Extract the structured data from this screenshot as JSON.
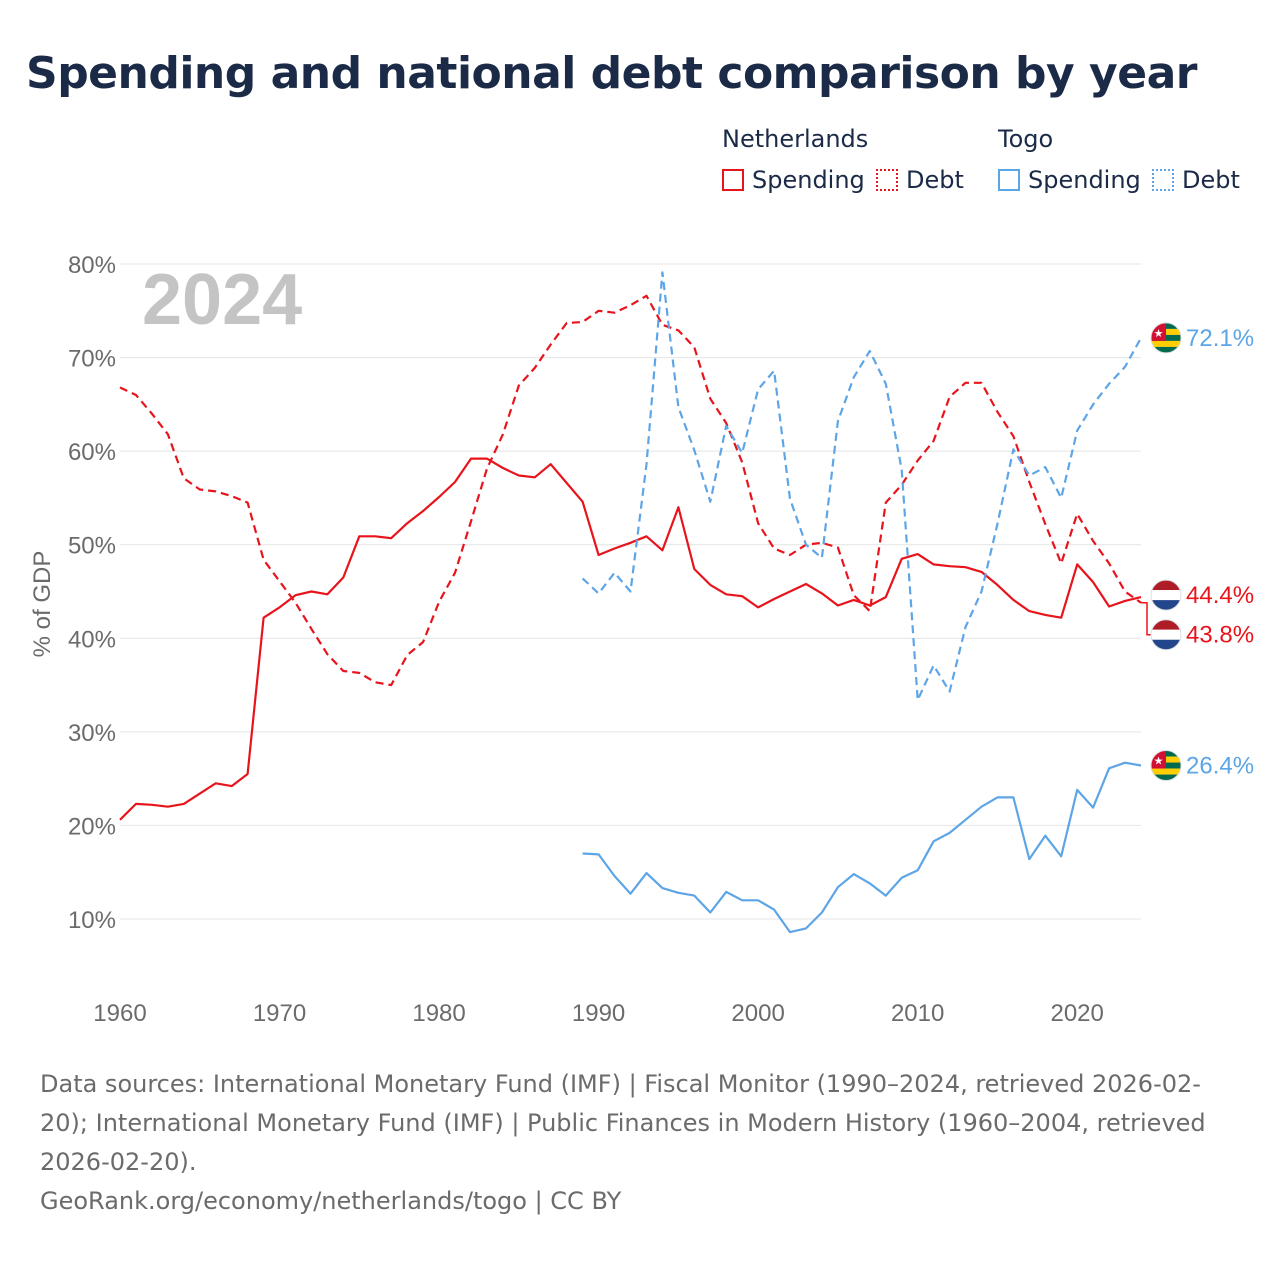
{
  "title": "Spending and national debt comparison by year",
  "legend": {
    "groups": [
      {
        "name": "Netherlands",
        "items": [
          {
            "label": "Spending",
            "style": "solid"
          },
          {
            "label": "Debt",
            "style": "dotted"
          }
        ]
      },
      {
        "name": "Togo",
        "items": [
          {
            "label": "Spending",
            "style": "solid"
          },
          {
            "label": "Debt",
            "style": "dotted"
          }
        ]
      }
    ]
  },
  "footer": {
    "sources": "Data sources: International Monetary Fund (IMF) | Fiscal Monitor (1990–2024, retrieved 2026-02-20); International Monetary Fund (IMF) | Public Finances in Modern History (1960–2004, retrieved 2026-02-20).",
    "credit": "GeoRank.org/economy/netherlands/togo | CC BY"
  },
  "chart_data": {
    "type": "line",
    "year_watermark": "2024",
    "ylabel": "% of GDP",
    "ylim": [
      0,
      80
    ],
    "xlim": [
      1960,
      2024
    ],
    "yticks": [
      "10%",
      "20%",
      "30%",
      "40%",
      "50%",
      "60%",
      "70%",
      "80%"
    ],
    "ytick_values": [
      10,
      20,
      30,
      40,
      50,
      60,
      70,
      80
    ],
    "xticks": [
      "1960",
      "1970",
      "1980",
      "1990",
      "2000",
      "2010",
      "2020"
    ],
    "xtick_values": [
      1960,
      1970,
      1980,
      1990,
      2000,
      2010,
      2020
    ],
    "colors": {
      "netherlands": "#e8141c",
      "togo": "#5da5e6"
    },
    "series": [
      {
        "name": "Netherlands Spending",
        "country": "netherlands",
        "dash": false,
        "x": [
          1960,
          1961,
          1962,
          1963,
          1964,
          1965,
          1966,
          1967,
          1968,
          1969,
          1970,
          1971,
          1972,
          1973,
          1974,
          1975,
          1976,
          1977,
          1978,
          1979,
          1980,
          1981,
          1982,
          1983,
          1984,
          1985,
          1986,
          1987,
          1988,
          1989,
          1990,
          1991,
          1992,
          1993,
          1994,
          1995,
          1996,
          1997,
          1998,
          1999,
          2000,
          2001,
          2002,
          2003,
          2004,
          2005,
          2006,
          2007,
          2008,
          2009,
          2010,
          2011,
          2012,
          2013,
          2014,
          2015,
          2016,
          2017,
          2018,
          2019,
          2020,
          2021,
          2022,
          2023,
          2024
        ],
        "values": [
          20.6,
          22.3,
          22.2,
          22.0,
          22.3,
          23.4,
          24.5,
          24.2,
          25.5,
          42.2,
          43.3,
          44.6,
          45.0,
          44.7,
          46.5,
          50.9,
          50.9,
          50.7,
          52.3,
          53.6,
          55.1,
          56.7,
          59.2,
          59.2,
          58.2,
          57.4,
          57.2,
          58.6,
          56.6,
          54.6,
          48.9,
          49.6,
          50.2,
          50.9,
          49.4,
          54.0,
          47.4,
          45.7,
          44.7,
          44.5,
          43.3,
          44.2,
          45.0,
          45.8,
          44.8,
          43.5,
          44.1,
          43.5,
          44.4,
          48.5,
          49.0,
          47.9,
          47.7,
          47.6,
          47.1,
          45.7,
          44.1,
          42.9,
          42.5,
          42.2,
          47.9,
          46.0,
          43.4,
          44.0,
          44.4
        ],
        "end_label": "44.4%"
      },
      {
        "name": "Netherlands Debt",
        "country": "netherlands",
        "dash": true,
        "x": [
          1960,
          1961,
          1962,
          1963,
          1964,
          1965,
          1966,
          1967,
          1968,
          1969,
          1970,
          1971,
          1972,
          1973,
          1974,
          1975,
          1976,
          1977,
          1978,
          1979,
          1980,
          1981,
          1982,
          1983,
          1984,
          1985,
          1986,
          1987,
          1988,
          1989,
          1990,
          1991,
          1992,
          1993,
          1994,
          1995,
          1996,
          1997,
          1998,
          1999,
          2000,
          2001,
          2002,
          2003,
          2004,
          2005,
          2006,
          2007,
          2008,
          2009,
          2010,
          2011,
          2012,
          2013,
          2014,
          2015,
          2016,
          2017,
          2018,
          2019,
          2020,
          2021,
          2022,
          2023,
          2024
        ],
        "values": [
          66.8,
          66.0,
          64.0,
          61.8,
          57.1,
          55.9,
          55.7,
          55.2,
          54.5,
          48.4,
          46.1,
          43.8,
          41.0,
          38.3,
          36.5,
          36.3,
          35.3,
          35.0,
          38.2,
          39.6,
          43.9,
          47.0,
          52.5,
          58.1,
          61.8,
          67.0,
          68.9,
          71.4,
          73.7,
          73.8,
          75.0,
          74.8,
          75.6,
          76.6,
          73.5,
          72.9,
          71.1,
          65.6,
          63.0,
          58.8,
          52.3,
          49.6,
          48.9,
          50.0,
          50.2,
          49.7,
          44.6,
          42.9,
          54.5,
          56.4,
          59.0,
          61.1,
          65.8,
          67.3,
          67.3,
          64.2,
          61.6,
          56.7,
          52.2,
          48.0,
          53.3,
          50.4,
          48.0,
          45.0,
          43.8
        ],
        "end_label": "43.8%"
      },
      {
        "name": "Togo Spending",
        "country": "togo",
        "dash": false,
        "x": [
          1989,
          1990,
          1991,
          1992,
          1993,
          1994,
          1995,
          1996,
          1997,
          1998,
          1999,
          2000,
          2001,
          2002,
          2003,
          2004,
          2005,
          2006,
          2007,
          2008,
          2009,
          2010,
          2011,
          2012,
          2013,
          2014,
          2015,
          2016,
          2017,
          2018,
          2019,
          2020,
          2021,
          2022,
          2023,
          2024
        ],
        "values": [
          17.0,
          16.9,
          14.6,
          12.7,
          14.9,
          13.3,
          12.8,
          12.5,
          10.7,
          12.9,
          12.0,
          12.0,
          11.0,
          8.6,
          9.0,
          10.7,
          13.4,
          14.8,
          13.8,
          12.5,
          14.4,
          15.2,
          18.3,
          19.2,
          20.6,
          22.0,
          23.0,
          23.0,
          16.4,
          18.9,
          16.7,
          23.8,
          21.9,
          26.1,
          26.7,
          26.4
        ],
        "end_label": "26.4%"
      },
      {
        "name": "Togo Debt",
        "country": "togo",
        "dash": true,
        "x": [
          1989,
          1990,
          1991,
          1992,
          1993,
          1994,
          1995,
          1996,
          1997,
          1998,
          1999,
          2000,
          2001,
          2002,
          2003,
          2004,
          2005,
          2006,
          2007,
          2008,
          2009,
          2010,
          2011,
          2012,
          2013,
          2014,
          2015,
          2016,
          2017,
          2018,
          2019,
          2020,
          2021,
          2022,
          2023,
          2024
        ],
        "values": [
          46.4,
          44.8,
          47.0,
          45.0,
          58.6,
          79.1,
          64.7,
          60.1,
          54.6,
          62.7,
          59.8,
          66.6,
          68.6,
          54.9,
          50.0,
          48.6,
          63.2,
          67.9,
          70.7,
          67.2,
          58.0,
          33.4,
          37.1,
          34.3,
          41.2,
          45.0,
          52.2,
          60.2,
          57.4,
          58.3,
          55.0,
          62.2,
          65.0,
          67.2,
          69.0,
          72.1
        ],
        "end_label": "72.1%"
      }
    ]
  }
}
